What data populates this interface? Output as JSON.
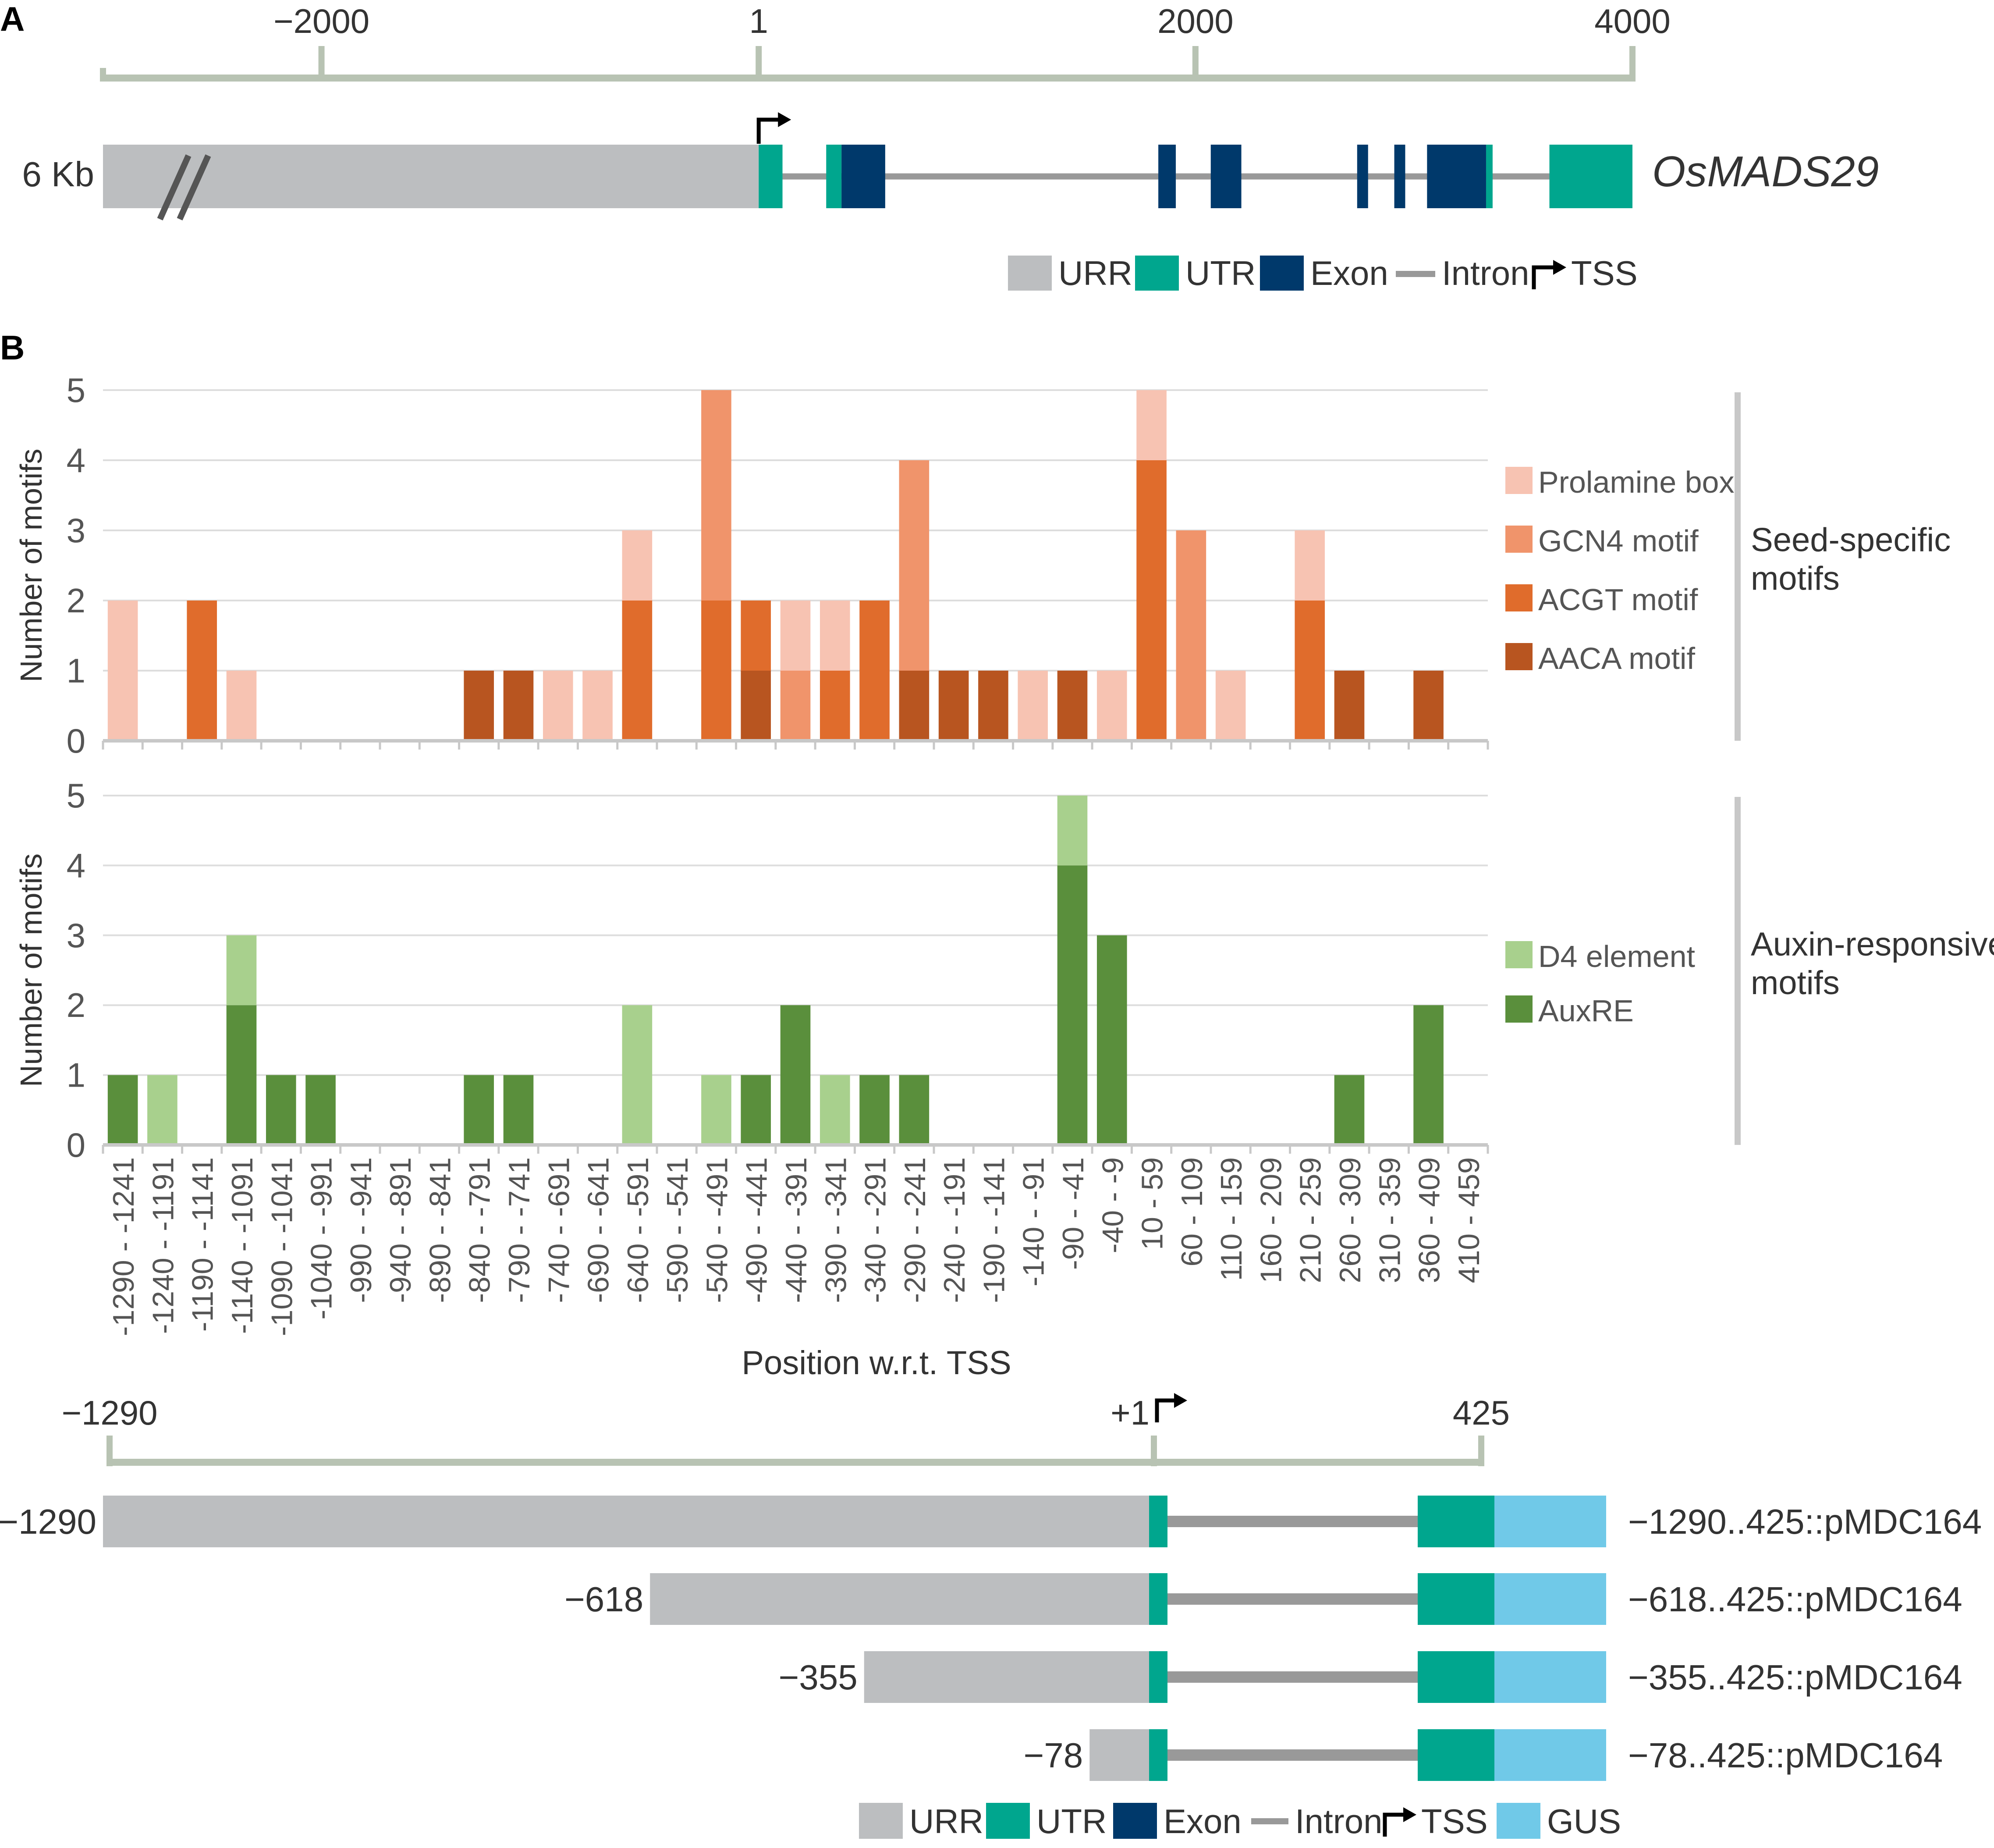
{
  "panel_labels": {
    "a": "A",
    "b": "B"
  },
  "colors": {
    "urr": "#bcbec0",
    "utr": "#00a68e",
    "exon": "#00396b",
    "intron": "#999999",
    "gus": "#70c9e8",
    "axis": "#b8c3b3",
    "text": "#333333",
    "prolamine": "#f7c3b2",
    "gcn4": "#f0946b",
    "acgt": "#e06c2c",
    "aaca": "#b85520",
    "d4": "#a8d08d",
    "auxre": "#5a8f3c"
  },
  "gene_model": {
    "axis_ticks": [
      "−2000",
      "1",
      "2000",
      "4000"
    ],
    "axis_tick_values": [
      -2000,
      1,
      2000,
      4000
    ],
    "axis_range": [
      -3000,
      4000
    ],
    "size_label": "6 Kb",
    "gene_name": "OsMADS29",
    "urr": [
      -3000,
      1
    ],
    "utrs": [
      [
        1,
        110
      ],
      [
        310,
        380
      ],
      [
        3330,
        3360
      ],
      [
        3620,
        4000
      ]
    ],
    "exons": [
      [
        380,
        580
      ],
      [
        1830,
        1910
      ],
      [
        2070,
        2210
      ],
      [
        2740,
        2790
      ],
      [
        2910,
        2960
      ],
      [
        3060,
        3330
      ]
    ],
    "intron": [
      110,
      3620
    ],
    "tss": 1,
    "legend": [
      {
        "key": "urr",
        "label": "URR"
      },
      {
        "key": "utr",
        "label": "UTR"
      },
      {
        "key": "exon",
        "label": "Exon"
      },
      {
        "key": "intron",
        "label": "Intron"
      },
      {
        "key": "tss",
        "label": "TSS"
      }
    ]
  },
  "chart_data": [
    {
      "type": "bar",
      "stacked": true,
      "title": "Seed-specific motifs",
      "ylabel": "Number of motifs",
      "xlabel": "Position w.r.t. TSS",
      "ylim": [
        0,
        5
      ],
      "yticks": [
        "0",
        "1",
        "2",
        "3",
        "4",
        "5"
      ],
      "categories": [
        "-1290 - -1241",
        "-1240 - -1191",
        "-1190 - -1141",
        "-1140 - -1091",
        "-1090 - -1041",
        "-1040 - -991",
        "-990 - -941",
        "-940 - -891",
        "-890 - -841",
        "-840 - -791",
        "-790 - -741",
        "-740 - -691",
        "-690 - -641",
        "-640 - -591",
        "-590 - -541",
        "-540 - -491",
        "-490 - -441",
        "-440 - -391",
        "-390 - -341",
        "-340 - -291",
        "-290 - -241",
        "-240 - -191",
        "-190 - -141",
        "-140 - -91",
        "-90 - -41",
        "-40 - -9",
        "10 - 59",
        "60 - 109",
        "110 - 159",
        "160 - 209",
        "210 - 259",
        "260 - 309",
        "310 - 359",
        "360 - 409",
        "410 - 459"
      ],
      "series": [
        {
          "name": "AACA motif",
          "color_key": "aaca",
          "values": [
            0,
            0,
            0,
            0,
            0,
            0,
            0,
            0,
            0,
            1,
            1,
            0,
            0,
            0,
            0,
            0,
            1,
            0,
            0,
            0,
            1,
            1,
            1,
            0,
            1,
            0,
            0,
            0,
            0,
            0,
            0,
            1,
            0,
            1,
            0
          ]
        },
        {
          "name": "ACGT motif",
          "color_key": "acgt",
          "values": [
            0,
            0,
            2,
            0,
            0,
            0,
            0,
            0,
            0,
            0,
            0,
            0,
            0,
            2,
            0,
            2,
            1,
            0,
            1,
            2,
            0,
            0,
            0,
            0,
            0,
            0,
            4,
            0,
            0,
            0,
            2,
            0,
            0,
            0,
            0
          ]
        },
        {
          "name": "GCN4 motif",
          "color_key": "gcn4",
          "values": [
            0,
            0,
            0,
            0,
            0,
            0,
            0,
            0,
            0,
            0,
            0,
            0,
            0,
            0,
            0,
            3,
            0,
            1,
            0,
            0,
            3,
            0,
            0,
            0,
            0,
            0,
            0,
            3,
            0,
            0,
            0,
            0,
            0,
            0,
            0
          ]
        },
        {
          "name": "Prolamine box",
          "color_key": "prolamine",
          "values": [
            2,
            0,
            0,
            1,
            0,
            0,
            0,
            0,
            0,
            0,
            0,
            1,
            1,
            1,
            0,
            0,
            0,
            1,
            1,
            0,
            0,
            0,
            0,
            1,
            0,
            1,
            1,
            0,
            1,
            0,
            1,
            0,
            0,
            0,
            0
          ]
        }
      ],
      "legend": [
        "Prolamine box",
        "GCN4 motif",
        "ACGT motif",
        "AACA motif"
      ],
      "group_label": [
        "Seed-specific",
        "motifs"
      ]
    },
    {
      "type": "bar",
      "stacked": true,
      "title": "Auxin-responsive motifs",
      "ylabel": "Number of motifs",
      "xlabel": "Position w.r.t. TSS",
      "ylim": [
        0,
        5
      ],
      "yticks": [
        "0",
        "1",
        "2",
        "3",
        "4",
        "5"
      ],
      "categories": [
        "-1290 - -1241",
        "-1240 - -1191",
        "-1190 - -1141",
        "-1140 - -1091",
        "-1090 - -1041",
        "-1040 - -991",
        "-990 - -941",
        "-940 - -891",
        "-890 - -841",
        "-840 - -791",
        "-790 - -741",
        "-740 - -691",
        "-690 - -641",
        "-640 - -591",
        "-590 - -541",
        "-540 - -491",
        "-490 - -441",
        "-440 - -391",
        "-390 - -341",
        "-340 - -291",
        "-290 - -241",
        "-240 - -191",
        "-190 - -141",
        "-140 - -91",
        "-90 - -41",
        "-40 - -9",
        "10 - 59",
        "60 - 109",
        "110 - 159",
        "160 - 209",
        "210 - 259",
        "260 - 309",
        "310 - 359",
        "360 - 409",
        "410 - 459"
      ],
      "series": [
        {
          "name": "AuxRE",
          "color_key": "auxre",
          "values": [
            1,
            0,
            0,
            2,
            1,
            1,
            0,
            0,
            0,
            1,
            1,
            0,
            0,
            0,
            0,
            0,
            1,
            2,
            0,
            1,
            1,
            0,
            0,
            0,
            4,
            3,
            0,
            0,
            0,
            0,
            0,
            1,
            0,
            2,
            0
          ]
        },
        {
          "name": "D4 element",
          "color_key": "d4",
          "values": [
            0,
            1,
            0,
            1,
            0,
            0,
            0,
            0,
            0,
            0,
            0,
            0,
            0,
            2,
            0,
            1,
            0,
            0,
            1,
            0,
            0,
            0,
            0,
            0,
            1,
            0,
            0,
            0,
            0,
            0,
            0,
            0,
            0,
            0,
            0
          ]
        }
      ],
      "legend": [
        "D4 element",
        "AuxRE"
      ],
      "group_label": [
        "Auxin-responsive",
        "motifs"
      ]
    }
  ],
  "constructs": {
    "axis_ticks": [
      "−1290",
      "+1",
      "425"
    ],
    "axis_tick_values": [
      -1290,
      1,
      425
    ],
    "rows": [
      {
        "start": -1290,
        "start_label": "−1290",
        "name": "−1290..425::pMDC164"
      },
      {
        "start": -618,
        "start_label": "−618",
        "name": "−618..425::pMDC164"
      },
      {
        "start": -355,
        "start_label": "−355",
        "name": "−355..425::pMDC164"
      },
      {
        "start": -78,
        "start_label": "−78",
        "name": "−78..425::pMDC164"
      }
    ],
    "legend": [
      {
        "key": "urr",
        "label": "URR"
      },
      {
        "key": "utr",
        "label": "UTR"
      },
      {
        "key": "exon",
        "label": "Exon"
      },
      {
        "key": "intron",
        "label": "Intron"
      },
      {
        "key": "tss",
        "label": "TSS"
      },
      {
        "key": "gus",
        "label": "GUS"
      }
    ]
  }
}
